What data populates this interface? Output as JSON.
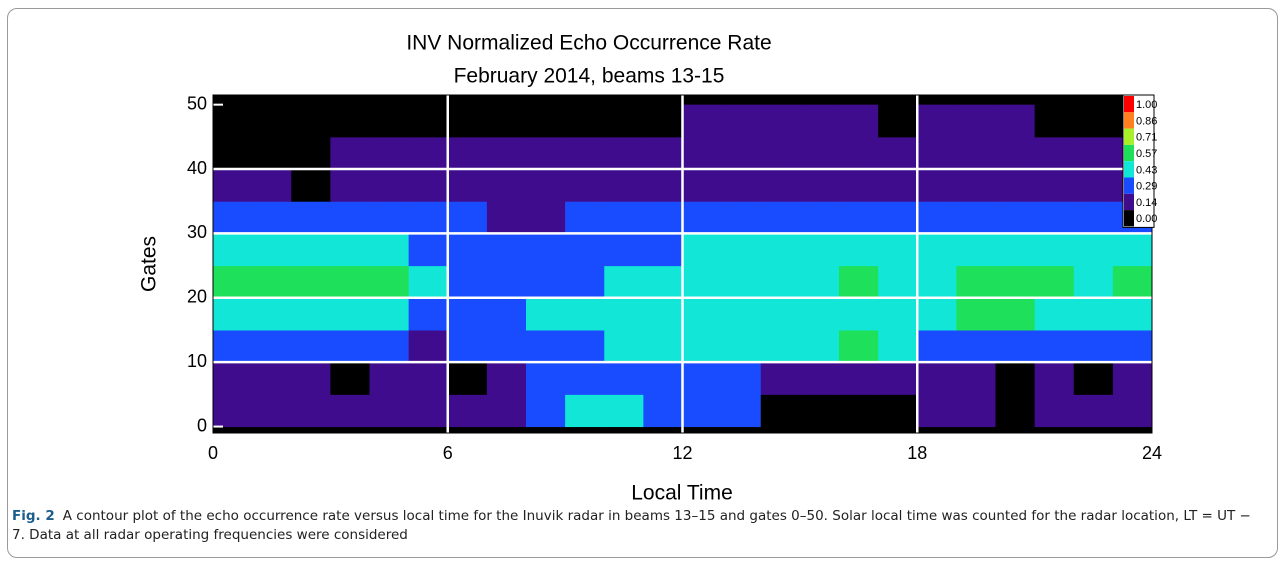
{
  "chart_data": {
    "type": "contour",
    "title": "INV Normalized Echo Occurrence Rate",
    "subtitle": "February 2014, beams 13-15",
    "x_label": "Local Time",
    "y_label": "Gates",
    "xlim": [
      0,
      24
    ],
    "ylim": [
      -1,
      51.5
    ],
    "xticks": [
      0,
      6,
      12,
      18,
      24
    ],
    "yticks": [
      0,
      10,
      20,
      30,
      40,
      50
    ],
    "grid": true,
    "xbins": [
      0,
      1,
      2,
      3,
      4,
      5,
      6,
      7,
      8,
      9,
      10,
      11,
      12,
      13,
      14,
      15,
      16,
      17,
      18,
      19,
      20,
      21,
      22,
      23,
      24
    ],
    "ybins": [
      0,
      5,
      10,
      15,
      20,
      25,
      30,
      35,
      40,
      45,
      50
    ],
    "values": [
      [
        0.2,
        0.2,
        0.2,
        0.15,
        0.15,
        0.15,
        0.15,
        0.15,
        0.35,
        0.45,
        0.45,
        0.3,
        0.3,
        0.3,
        0.05,
        0.05,
        0.05,
        0.05,
        0.15,
        0.15,
        0.1,
        0.15,
        0.15,
        0.15
      ],
      [
        0.15,
        0.15,
        0.15,
        0.1,
        0.15,
        0.15,
        0.1,
        0.15,
        0.3,
        0.3,
        0.3,
        0.35,
        0.35,
        0.3,
        0.25,
        0.25,
        0.25,
        0.25,
        0.15,
        0.15,
        0.1,
        0.15,
        0.1,
        0.15
      ],
      [
        0.3,
        0.3,
        0.3,
        0.3,
        0.3,
        0.25,
        0.3,
        0.3,
        0.4,
        0.4,
        0.45,
        0.45,
        0.45,
        0.45,
        0.55,
        0.55,
        0.6,
        0.55,
        0.4,
        0.4,
        0.35,
        0.3,
        0.3,
        0.3
      ],
      [
        0.45,
        0.5,
        0.5,
        0.5,
        0.5,
        0.4,
        0.3,
        0.3,
        0.45,
        0.45,
        0.5,
        0.5,
        0.45,
        0.45,
        0.5,
        0.5,
        0.5,
        0.5,
        0.55,
        0.6,
        0.6,
        0.5,
        0.45,
        0.45
      ],
      [
        0.6,
        0.65,
        0.6,
        0.6,
        0.6,
        0.45,
        0.35,
        0.35,
        0.4,
        0.4,
        0.5,
        0.45,
        0.45,
        0.45,
        0.5,
        0.5,
        0.6,
        0.5,
        0.5,
        0.6,
        0.62,
        0.6,
        0.55,
        0.58
      ],
      [
        0.45,
        0.5,
        0.45,
        0.45,
        0.5,
        0.4,
        0.35,
        0.35,
        0.3,
        0.3,
        0.35,
        0.4,
        0.45,
        0.45,
        0.5,
        0.5,
        0.5,
        0.45,
        0.45,
        0.5,
        0.5,
        0.45,
        0.45,
        0.45
      ],
      [
        0.3,
        0.3,
        0.3,
        0.3,
        0.3,
        0.3,
        0.3,
        0.25,
        0.25,
        0.3,
        0.3,
        0.3,
        0.3,
        0.3,
        0.3,
        0.3,
        0.3,
        0.3,
        0.3,
        0.3,
        0.3,
        0.3,
        0.3,
        0.3
      ],
      [
        0.18,
        0.15,
        0.1,
        0.15,
        0.15,
        0.2,
        0.2,
        0.18,
        0.2,
        0.15,
        0.2,
        0.2,
        0.2,
        0.2,
        0.2,
        0.25,
        0.25,
        0.2,
        0.2,
        0.2,
        0.2,
        0.2,
        0.18,
        0.18
      ],
      [
        0.05,
        0.05,
        0.1,
        0.15,
        0.15,
        0.15,
        0.15,
        0.15,
        0.15,
        0.15,
        0.15,
        0.15,
        0.2,
        0.2,
        0.2,
        0.2,
        0.2,
        0.2,
        0.2,
        0.2,
        0.2,
        0.15,
        0.15,
        0.15
      ],
      [
        0.05,
        0.05,
        0.05,
        0.05,
        0.05,
        0.05,
        0.05,
        0.05,
        0.05,
        0.05,
        0.05,
        0.1,
        0.15,
        0.15,
        0.15,
        0.15,
        0.15,
        0.1,
        0.15,
        0.15,
        0.15,
        0.05,
        0.05,
        0.05
      ]
    ],
    "levels": [
      {
        "value": 0,
        "label": "0.00"
      },
      {
        "value": 0.14,
        "label": "0.14"
      },
      {
        "value": 0.29,
        "label": "0.29"
      },
      {
        "value": 0.43,
        "label": "0.43"
      },
      {
        "value": 0.57,
        "label": "0.57"
      },
      {
        "value": 0.71,
        "label": "0.71"
      },
      {
        "value": 0.86,
        "label": "0.86"
      },
      {
        "value": 1,
        "label": "1.00"
      }
    ],
    "colors": [
      "#000000",
      "#3f0c8e",
      "#1a4cff",
      "#12e6d6",
      "#1ee05a",
      "#a8f02a",
      "#ff8020",
      "#ff0000"
    ],
    "legend": "upper right"
  },
  "caption": {
    "label": "Fig. 2",
    "text": "A contour plot of the echo occurrence rate versus local time for the Inuvik radar in beams 13–15 and gates 0–50. Solar local time was counted for the radar location, LT = UT − 7. Data at all radar operating frequencies were considered"
  }
}
